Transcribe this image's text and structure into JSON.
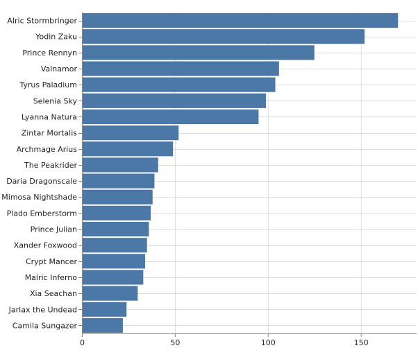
{
  "chart_data": {
    "type": "bar",
    "orientation": "horizontal",
    "bar_color": "#4c78a8",
    "categories": [
      "Alric Stormbringer",
      "Yodin Zaku",
      "Prince Rennyn",
      "Valnamor",
      "Tyrus Paladium",
      "Selenia Sky",
      "Lyanna Natura",
      "Zintar Mortalis",
      "Archmage Arius",
      "The Peakrider",
      "Daria Dragonscale",
      "Mimosa Nightshade",
      "Plado Emberstorm",
      "Prince Julian",
      "Xander Foxwood",
      "Crypt Mancer",
      "Malric Inferno",
      "Xia Seachan",
      "Jarlax the Undead",
      "Camila Sungazer"
    ],
    "values": [
      170,
      152,
      125,
      106,
      104,
      99,
      95,
      52,
      49,
      41,
      39,
      38,
      37,
      36,
      35,
      34,
      33,
      30,
      24,
      22
    ],
    "xlim": [
      0,
      180
    ],
    "xticks": [
      0,
      50,
      100,
      150
    ],
    "xtick_labels": [
      "0",
      "50",
      "100",
      "150"
    ],
    "grid": true,
    "title": "",
    "xlabel": "",
    "ylabel": ""
  }
}
